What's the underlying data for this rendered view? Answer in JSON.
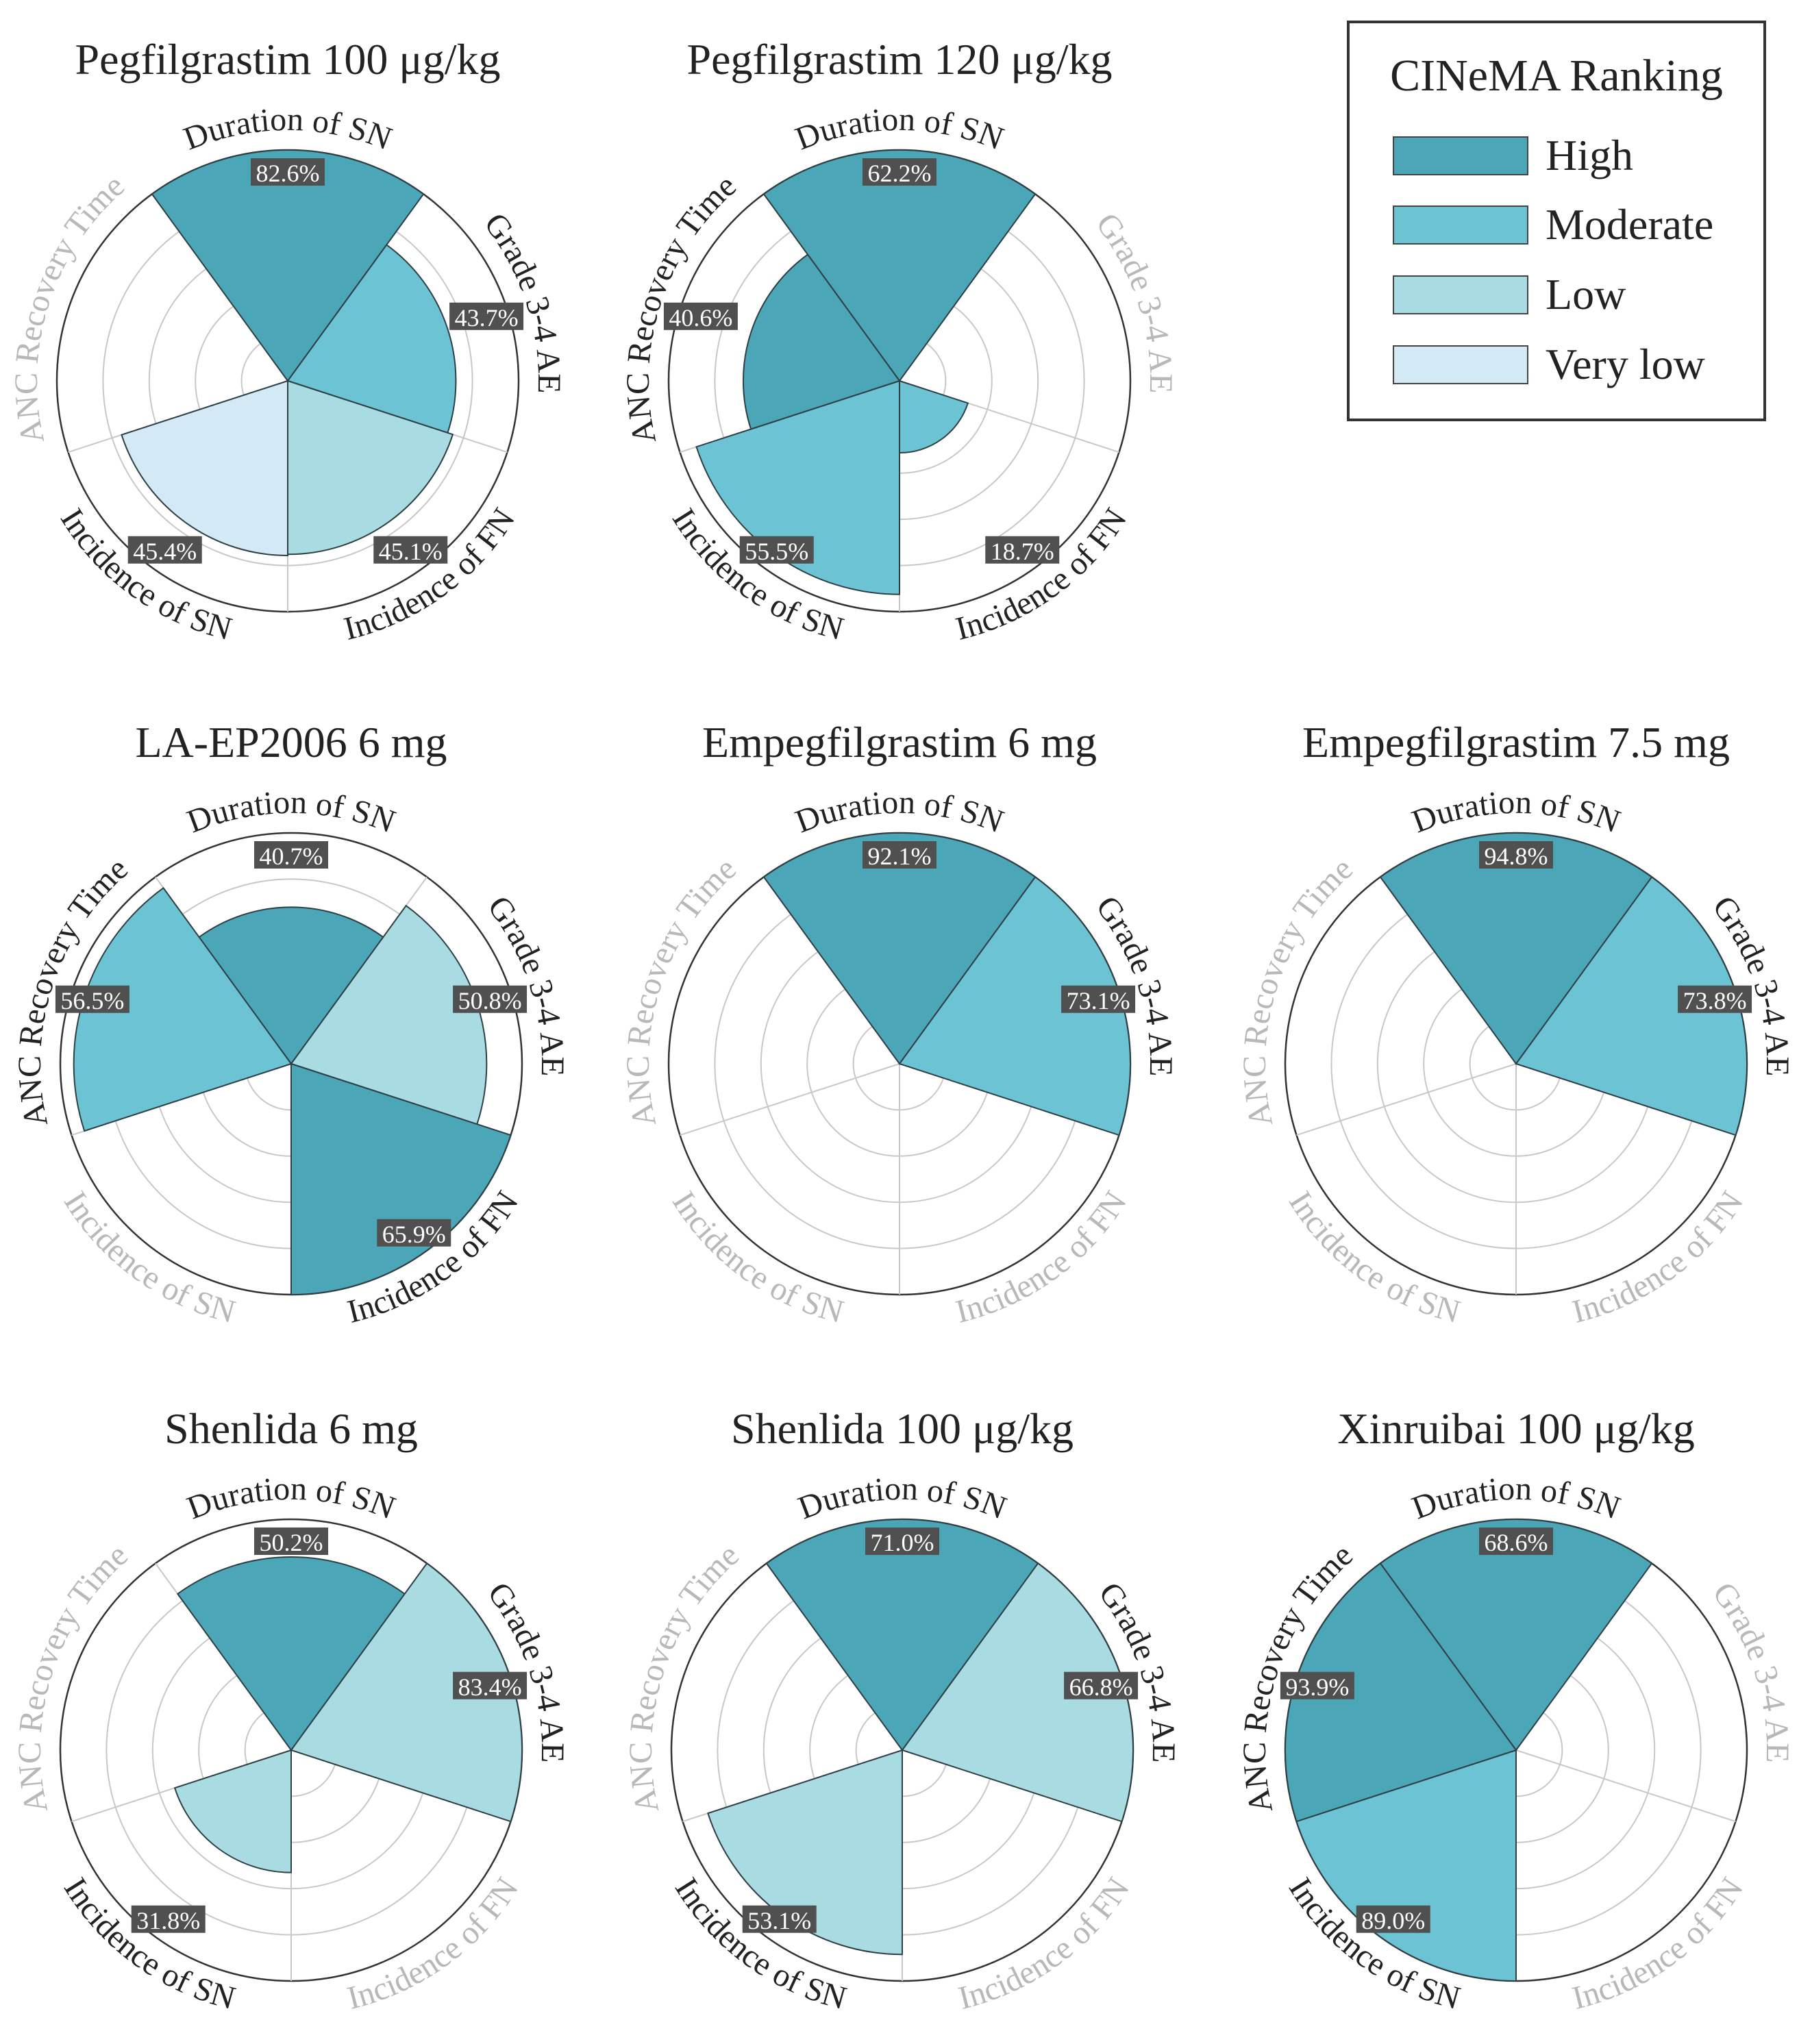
{
  "figure": {
    "legend": {
      "title": "CINeMA Ranking",
      "items": [
        {
          "label": "High",
          "color": "#4ba6b8"
        },
        {
          "label": "Moderate",
          "color": "#6bc3d3"
        },
        {
          "label": "Low",
          "color": "#a9dbe3"
        },
        {
          "label": "Very low",
          "color": "#d3e9f5"
        }
      ]
    }
  },
  "chart_data": [
    {
      "type": "polar-bar",
      "title": "Pegfilgrastim 100 μg/kg",
      "categories": [
        "Duration of SN",
        "Grade 3-4 AE",
        "Incidence of FN",
        "Incidence of SN",
        "ANC Recovery Time"
      ],
      "values": [
        82.6,
        43.7,
        45.1,
        45.4,
        null
      ],
      "labels": [
        "82.6%",
        "43.7%",
        "45.1%",
        "45.4%",
        ""
      ],
      "ranking": [
        "High",
        "Moderate",
        "Low",
        "Very low",
        null
      ],
      "rlim": [
        0,
        100
      ]
    },
    {
      "type": "polar-bar",
      "title": "Pegfilgrastim 120 μg/kg",
      "categories": [
        "Duration of SN",
        "Grade 3-4 AE",
        "Incidence of FN",
        "Incidence of SN",
        "ANC Recovery Time"
      ],
      "values": [
        62.2,
        null,
        18.7,
        55.5,
        40.6
      ],
      "labels": [
        "62.2%",
        "",
        "18.7%",
        "55.5%",
        "40.6%"
      ],
      "ranking": [
        "High",
        null,
        "Moderate",
        "Moderate",
        "High"
      ],
      "rlim": [
        0,
        100
      ]
    },
    {
      "type": "polar-bar",
      "title": "LA-EP2006 6 mg",
      "categories": [
        "Duration of SN",
        "Grade 3-4 AE",
        "Incidence of FN",
        "Incidence of SN",
        "ANC Recovery Time"
      ],
      "values": [
        40.7,
        50.8,
        65.9,
        null,
        56.5
      ],
      "labels": [
        "40.7%",
        "50.8%",
        "65.9%",
        "",
        "56.5%"
      ],
      "ranking": [
        "High",
        "Low",
        "High",
        null,
        "Moderate"
      ],
      "rlim": [
        0,
        100
      ]
    },
    {
      "type": "polar-bar",
      "title": "Empegfilgrastim 6 mg",
      "categories": [
        "Duration of SN",
        "Grade 3-4 AE",
        "Incidence of FN",
        "Incidence of SN",
        "ANC Recovery Time"
      ],
      "values": [
        92.1,
        73.1,
        null,
        null,
        null
      ],
      "labels": [
        "92.1%",
        "73.1%",
        "",
        "",
        ""
      ],
      "ranking": [
        "High",
        "Moderate",
        null,
        null,
        null
      ],
      "rlim": [
        0,
        100
      ]
    },
    {
      "type": "polar-bar",
      "title": "Empegfilgrastim 7.5 mg",
      "categories": [
        "Duration of SN",
        "Grade 3-4 AE",
        "Incidence of FN",
        "Incidence of SN",
        "ANC Recovery Time"
      ],
      "values": [
        94.8,
        73.8,
        null,
        null,
        null
      ],
      "labels": [
        "94.8%",
        "73.8%",
        "",
        "",
        ""
      ],
      "ranking": [
        "High",
        "Moderate",
        null,
        null,
        null
      ],
      "rlim": [
        0,
        100
      ]
    },
    {
      "type": "polar-bar",
      "title": "Shenlida 6 mg",
      "categories": [
        "Duration of SN",
        "Grade 3-4 AE",
        "Incidence of FN",
        "Incidence of SN",
        "ANC Recovery Time"
      ],
      "values": [
        50.2,
        83.4,
        null,
        31.8,
        null
      ],
      "labels": [
        "50.2%",
        "83.4%",
        "",
        "31.8%",
        ""
      ],
      "ranking": [
        "High",
        "Low",
        null,
        "Low",
        null
      ],
      "rlim": [
        0,
        100
      ]
    },
    {
      "type": "polar-bar",
      "title": "Shenlida 100 μg/kg",
      "categories": [
        "Duration of SN",
        "Grade 3-4 AE",
        "Incidence of FN",
        "Incidence of SN",
        "ANC Recovery Time"
      ],
      "values": [
        71.0,
        66.8,
        null,
        53.1,
        null
      ],
      "labels": [
        "71.0%",
        "66.8%",
        "",
        "53.1%",
        ""
      ],
      "ranking": [
        "High",
        "Low",
        null,
        "Low",
        null
      ],
      "rlim": [
        0,
        100
      ]
    },
    {
      "type": "polar-bar",
      "title": "Xinruibai 100 μg/kg",
      "categories": [
        "Duration of SN",
        "Grade 3-4 AE",
        "Incidence of FN",
        "Incidence of SN",
        "ANC Recovery Time"
      ],
      "values": [
        68.6,
        null,
        null,
        89.0,
        93.9
      ],
      "labels": [
        "68.6%",
        "",
        "",
        "89.0%",
        "93.9%"
      ],
      "ranking": [
        "High",
        null,
        null,
        "Moderate",
        "High"
      ],
      "rlim": [
        0,
        100
      ]
    }
  ]
}
